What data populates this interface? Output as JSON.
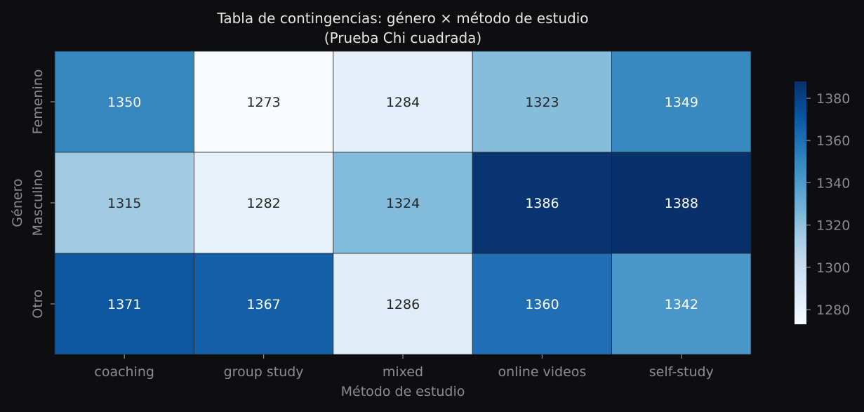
{
  "chart_data": {
    "type": "heatmap",
    "title": "Tabla de contingencias: género × método de estudio",
    "subtitle": "(Prueba Chi cuadrada)",
    "xlabel": "Método de estudio",
    "ylabel": "Género",
    "x_categories": [
      "coaching",
      "group study",
      "mixed",
      "online videos",
      "self-study"
    ],
    "y_categories": [
      "Femenino",
      "Masculino",
      "Otro"
    ],
    "values": [
      [
        1350,
        1273,
        1284,
        1323,
        1349
      ],
      [
        1315,
        1282,
        1324,
        1386,
        1388
      ],
      [
        1371,
        1367,
        1286,
        1360,
        1342
      ]
    ],
    "colormap": "Blues",
    "colorbar": {
      "range": [
        1273,
        1388
      ],
      "ticks": [
        1280,
        1300,
        1320,
        1340,
        1360,
        1380
      ]
    },
    "colors": {
      "background": "#0e0e10",
      "text": "#e6e6e6",
      "tick_text": "#8c8a94",
      "cell_border": "#222222"
    }
  }
}
